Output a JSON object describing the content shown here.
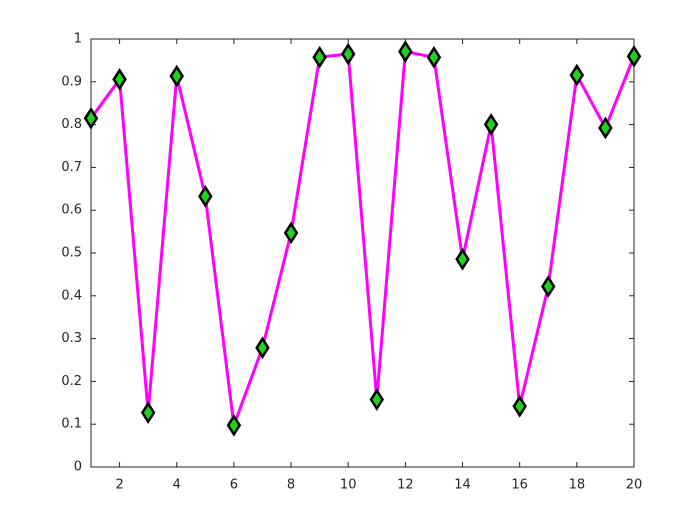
{
  "chart_data": {
    "type": "line",
    "x": [
      1,
      2,
      3,
      4,
      5,
      6,
      7,
      8,
      9,
      10,
      11,
      12,
      13,
      14,
      15,
      16,
      17,
      18,
      19,
      20
    ],
    "series": [
      {
        "color": "#ff00ff",
        "marker": "diamond",
        "marker_face_color": "#1ed21e",
        "marker_edge_color": "#000000",
        "values": [
          0.8147,
          0.9058,
          0.127,
          0.9134,
          0.6324,
          0.0975,
          0.2785,
          0.5469,
          0.9575,
          0.9649,
          0.1576,
          0.9706,
          0.9572,
          0.4854,
          0.8003,
          0.1419,
          0.4218,
          0.9157,
          0.7922,
          0.9595
        ]
      }
    ],
    "xlim": [
      1,
      20
    ],
    "xticks": [
      2,
      4,
      6,
      8,
      10,
      12,
      14,
      16,
      18,
      20
    ],
    "ylim": [
      0,
      1
    ],
    "yticks": [
      0,
      0.1,
      0.2,
      0.3,
      0.4,
      0.5,
      0.6,
      0.7,
      0.8,
      0.9,
      1
    ],
    "grid": false,
    "box": true
  }
}
